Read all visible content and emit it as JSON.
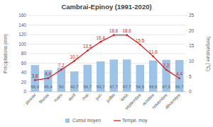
{
  "chart_data": {
    "type": "bar",
    "title": "Cambrai-Epinoy (1991-2020)",
    "categories": [
      "janvier",
      "février",
      "mars",
      "avril",
      "mai",
      "juin",
      "juillet",
      "août",
      "septembre",
      "octobre",
      "novembre",
      "décembre"
    ],
    "series": [
      {
        "name": "Cumul moyen",
        "type": "bar",
        "color": "#9dc3e6",
        "values": [
          56.0,
          45.4,
          50,
          42.7,
          56.7,
          63.7,
          67.7,
          67.7,
          56.5,
          65.6,
          67.0,
          66.7
        ],
        "value_labels": [
          "56,0",
          "45,4",
          "50",
          "42,7",
          "56,7",
          "63,7",
          "67,7",
          "67,7",
          "56,5",
          "65,6",
          "67,0",
          "66,7"
        ]
      },
      {
        "name": "Tempé. moy",
        "type": "line",
        "axis": "y2",
        "color": "#d62020",
        "marker": "circle",
        "values": [
          3.8,
          4.4,
          7.2,
          10.1,
          13.5,
          16.4,
          18.6,
          18.6,
          15.5,
          11.6,
          7.2,
          4.4
        ],
        "value_labels": [
          "3,8",
          "4,4",
          "7,2",
          "10,1",
          "13,5",
          "16,4",
          "18,6",
          "18,6",
          "15,5",
          "11,6",
          "7,2",
          "4,4"
        ]
      }
    ],
    "ylabel": "Précipitations (mm)",
    "y2label": "Température (°C)",
    "ylim": [
      0,
      160
    ],
    "yticks": [
      0,
      20,
      40,
      60,
      80,
      100,
      120,
      140,
      160
    ],
    "y2lim": [
      0,
      25
    ],
    "y2ticks": [
      0,
      5,
      10,
      15,
      20,
      25
    ],
    "grid": true,
    "data_labels": true,
    "legend": "bottom"
  }
}
